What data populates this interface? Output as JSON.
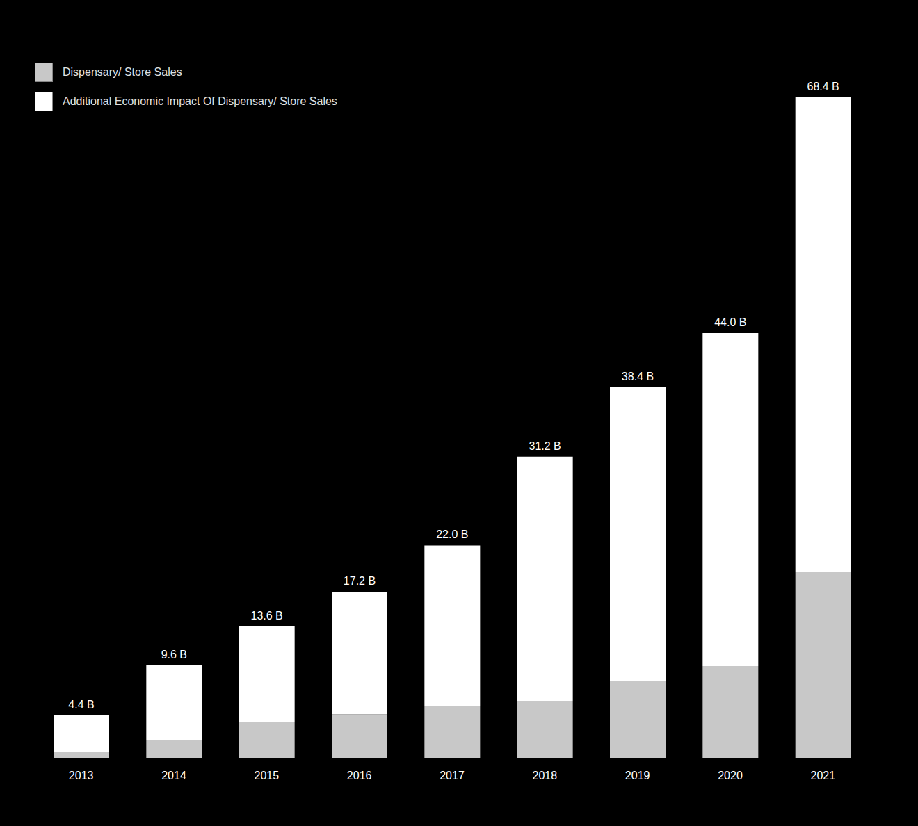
{
  "chart_data": {
    "type": "bar",
    "stacked": true,
    "legend": "top-left",
    "tick_labels": "x",
    "categories": [
      "2013",
      "2014",
      "2015",
      "2016",
      "2017",
      "2018",
      "2019",
      "2020",
      "2021"
    ],
    "series": [
      {
        "name": "Dispensary/ Store Sales",
        "color": "#c8c8c8",
        "values": [
          0.6,
          1.8,
          3.7,
          4.5,
          5.4,
          5.9,
          8.0,
          9.5,
          19.3
        ]
      },
      {
        "name": "Additional Economic Impact Of Dispensary/ Store Sales",
        "color": "#ffffff",
        "values": [
          3.8,
          7.8,
          9.9,
          12.7,
          16.6,
          25.3,
          30.4,
          34.5,
          49.1
        ]
      }
    ],
    "total_labels": [
      "4.4 B",
      "9.6 B",
      "13.6 B",
      "17.2 B",
      "22.0 B",
      "31.2 B",
      "38.4 B",
      "44.0 B",
      "68.4 B"
    ]
  }
}
